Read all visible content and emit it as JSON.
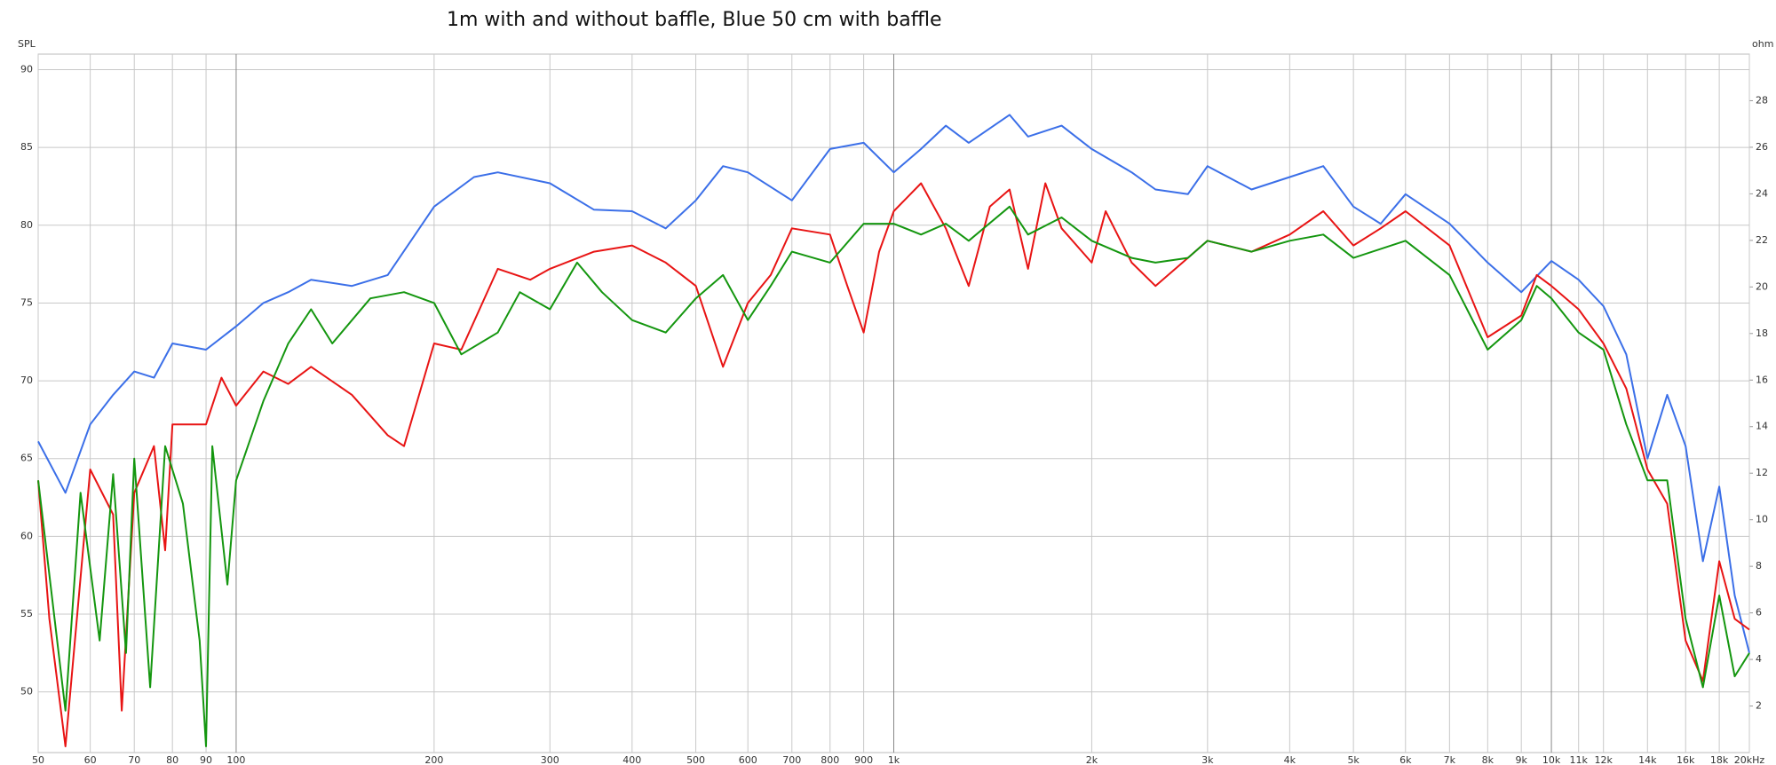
{
  "chart_data": {
    "type": "line",
    "title": "1m with and without baffle, Blue 50 cm with baffle",
    "y_label": "SPL",
    "y2_label": "ohm",
    "x_log": true,
    "grid": true,
    "xlim": [
      50,
      20000
    ],
    "ylim": [
      46.1,
      91.0
    ],
    "y2lim": [
      0,
      30
    ],
    "xticks": [
      50,
      60,
      70,
      80,
      90,
      100,
      200,
      300,
      400,
      500,
      600,
      700,
      800,
      900,
      {
        "value": 1000,
        "label": "1k"
      },
      {
        "value": 2000,
        "label": "2k"
      },
      {
        "value": 3000,
        "label": "3k"
      },
      {
        "value": 4000,
        "label": "4k"
      },
      {
        "value": 5000,
        "label": "5k"
      },
      {
        "value": 6000,
        "label": "6k"
      },
      {
        "value": 7000,
        "label": "7k"
      },
      {
        "value": 8000,
        "label": "8k"
      },
      {
        "value": 9000,
        "label": "9k"
      },
      {
        "value": 10000,
        "label": "10k"
      },
      {
        "value": 11000,
        "label": "11k"
      },
      {
        "value": 12000,
        "label": "12k"
      },
      {
        "value": 14000,
        "label": "14k"
      },
      {
        "value": 16000,
        "label": "16k"
      },
      {
        "value": 18000,
        "label": "18k"
      },
      {
        "value": 20000,
        "label": "20kHz"
      }
    ],
    "yticks": [
      50,
      55,
      60,
      65,
      70,
      75,
      80,
      85,
      90
    ],
    "y2ticks": [
      2,
      4,
      6,
      8,
      10,
      12,
      14,
      16,
      18,
      20,
      22,
      24,
      26,
      28
    ],
    "series": [
      {
        "color": "#3b6fe8",
        "x": [
          50,
          55,
          60,
          65,
          70,
          75,
          80,
          90,
          100,
          110,
          120,
          130,
          150,
          170,
          200,
          230,
          250,
          300,
          350,
          400,
          450,
          500,
          550,
          600,
          700,
          800,
          900,
          1000,
          1100,
          1200,
          1300,
          1500,
          1600,
          1800,
          2000,
          2300,
          2500,
          2800,
          3000,
          3500,
          4000,
          4500,
          5000,
          5500,
          6000,
          7000,
          8000,
          9000,
          10000,
          11000,
          12000,
          13000,
          14000,
          15000,
          16000,
          17000,
          18000,
          19000,
          20000
        ],
        "values": [
          66.1,
          62.8,
          67.2,
          69.1,
          70.6,
          70.2,
          72.4,
          72.0,
          73.5,
          75.0,
          75.7,
          76.5,
          76.1,
          76.8,
          81.2,
          83.1,
          83.4,
          82.7,
          81.0,
          80.9,
          79.8,
          81.6,
          83.8,
          83.4,
          81.6,
          84.9,
          85.3,
          83.4,
          84.9,
          86.4,
          85.3,
          87.1,
          85.7,
          86.4,
          84.9,
          83.4,
          82.3,
          82.0,
          83.8,
          82.3,
          83.1,
          83.8,
          81.2,
          80.1,
          82.0,
          80.1,
          77.6,
          75.7,
          77.7,
          76.5,
          74.8,
          71.7,
          65.0,
          69.1,
          65.8,
          58.4,
          63.2,
          56.2,
          52.5
        ]
      },
      {
        "color": "#e81414",
        "x": [
          50,
          52,
          55,
          60,
          65,
          67,
          70,
          75,
          78,
          80,
          90,
          95,
          100,
          110,
          120,
          130,
          150,
          170,
          180,
          200,
          220,
          250,
          280,
          300,
          350,
          400,
          450,
          500,
          550,
          600,
          650,
          700,
          800,
          850,
          900,
          950,
          1000,
          1100,
          1200,
          1300,
          1400,
          1500,
          1600,
          1700,
          1800,
          2000,
          2100,
          2300,
          2500,
          2800,
          3000,
          3500,
          4000,
          4500,
          5000,
          5500,
          6000,
          7000,
          8000,
          9000,
          9500,
          10000,
          11000,
          12000,
          13000,
          14000,
          15000,
          16000,
          17000,
          18000,
          19000,
          20000
        ],
        "values": [
          63.6,
          54.7,
          46.5,
          64.3,
          61.4,
          48.8,
          62.8,
          65.8,
          59.1,
          67.2,
          67.2,
          70.2,
          68.4,
          70.6,
          69.8,
          70.9,
          69.1,
          66.5,
          65.8,
          72.4,
          72.0,
          77.2,
          76.5,
          77.2,
          78.3,
          78.7,
          77.6,
          76.1,
          70.9,
          75.0,
          76.8,
          79.8,
          79.4,
          76.1,
          73.1,
          78.3,
          80.9,
          82.7,
          79.8,
          76.1,
          81.2,
          82.3,
          77.2,
          82.7,
          79.8,
          77.6,
          80.9,
          77.6,
          76.1,
          77.9,
          79.0,
          78.3,
          79.4,
          80.9,
          78.7,
          79.8,
          80.9,
          78.7,
          72.8,
          74.2,
          76.8,
          76.1,
          74.6,
          72.4,
          69.5,
          64.3,
          62.1,
          53.3,
          50.7,
          58.4,
          54.7,
          54.0
        ]
      },
      {
        "color": "#14960f",
        "x": [
          50,
          55,
          58,
          62,
          65,
          68,
          70,
          74,
          78,
          83,
          88,
          90,
          92,
          97,
          100,
          110,
          120,
          130,
          140,
          160,
          180,
          200,
          220,
          250,
          270,
          300,
          330,
          360,
          400,
          450,
          500,
          550,
          600,
          650,
          700,
          800,
          900,
          1000,
          1100,
          1200,
          1300,
          1500,
          1600,
          1800,
          2000,
          2300,
          2500,
          2800,
          3000,
          3500,
          4000,
          4500,
          5000,
          6000,
          7000,
          8000,
          9000,
          9500,
          10000,
          11000,
          12000,
          13000,
          14000,
          15000,
          16000,
          17000,
          18000,
          19000,
          20000
        ],
        "values": [
          63.6,
          48.8,
          62.8,
          53.3,
          64.0,
          52.5,
          65.0,
          50.3,
          65.8,
          62.1,
          53.3,
          46.5,
          65.8,
          56.9,
          63.6,
          68.7,
          72.4,
          74.6,
          72.4,
          75.3,
          75.7,
          75.0,
          71.7,
          73.1,
          75.7,
          74.6,
          77.6,
          75.7,
          73.9,
          73.1,
          75.3,
          76.8,
          73.9,
          76.1,
          78.3,
          77.6,
          80.1,
          80.1,
          79.4,
          80.1,
          79.0,
          81.2,
          79.4,
          80.5,
          79.0,
          77.9,
          77.6,
          77.9,
          79.0,
          78.3,
          79.0,
          79.4,
          77.9,
          79.0,
          76.8,
          72.0,
          73.9,
          76.1,
          75.3,
          73.1,
          72.0,
          67.2,
          63.6,
          63.6,
          54.7,
          50.3,
          56.2,
          51.0,
          52.5
        ]
      }
    ]
  }
}
